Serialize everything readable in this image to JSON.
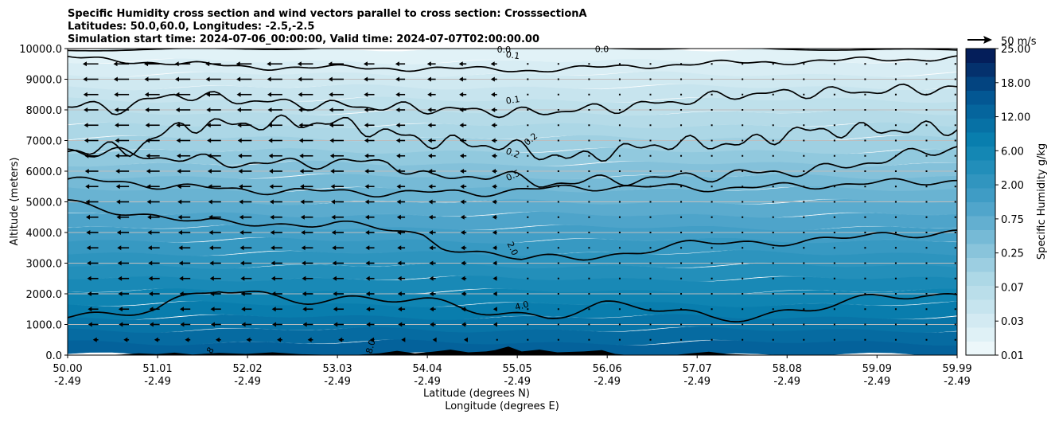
{
  "chart_data": {
    "type": "contourf-crosssection",
    "title_lines": [
      "Specific Humidity cross section and wind vectors parallel to cross section: CrosssectionA",
      "Latitudes: 50.0,60.0, Longitudes: -2.5,-2.5",
      "Simulation start time: 2024-07-06_00:00:00, Valid time: 2024-07-07T02:00:00.00"
    ],
    "ylabel": "Altitude (meters)",
    "xlabel_lat": "Latitude (degrees N)",
    "xlabel_lon": "Longitude (degrees E)",
    "ylim": [
      0,
      10000
    ],
    "xlim": [
      50.0,
      59.99
    ],
    "y_ticks": [
      "0.0",
      "1000.0",
      "2000.0",
      "3000.0",
      "4000.0",
      "5000.0",
      "6000.0",
      "7000.0",
      "8000.0",
      "9000.0",
      "10000.0"
    ],
    "x_ticks": [
      {
        "lat": "50.00",
        "lon": "-2.49"
      },
      {
        "lat": "51.01",
        "lon": "-2.49"
      },
      {
        "lat": "52.02",
        "lon": "-2.49"
      },
      {
        "lat": "53.03",
        "lon": "-2.49"
      },
      {
        "lat": "54.04",
        "lon": "-2.49"
      },
      {
        "lat": "55.05",
        "lon": "-2.49"
      },
      {
        "lat": "56.06",
        "lon": "-2.49"
      },
      {
        "lat": "57.07",
        "lon": "-2.49"
      },
      {
        "lat": "58.08",
        "lon": "-2.49"
      },
      {
        "lat": "59.09",
        "lon": "-2.49"
      },
      {
        "lat": "59.99",
        "lon": "-2.49"
      }
    ],
    "colorbar": {
      "label": "Specific Humidity g/kg",
      "levels": [
        0.01,
        0.02,
        0.03,
        0.05,
        0.07,
        0.1,
        0.15,
        0.25,
        0.35,
        0.5,
        0.75,
        1.0,
        1.5,
        2.0,
        3.0,
        4.0,
        6.0,
        8.0,
        12.0,
        15.0,
        18.0,
        21.0,
        25.0
      ],
      "tick_labels": [
        "0.01",
        "0.03",
        "0.07",
        "0.25",
        "0.75",
        "2.00",
        "6.00",
        "12.00",
        "18.00",
        "25.00"
      ]
    },
    "contour_labels": [
      "0.0",
      "0.1",
      "0.1",
      "0.0",
      "0.2",
      "0.2",
      "0.5",
      "2.0",
      "4.0",
      "8",
      "8.0"
    ],
    "quiver_key": "50 m/s",
    "colors": {
      "light": "#e8f4f8",
      "mid": "#0b84b0",
      "dark": "#034e8a",
      "terrain": "#000000",
      "grid": "#bdbdbd"
    }
  }
}
